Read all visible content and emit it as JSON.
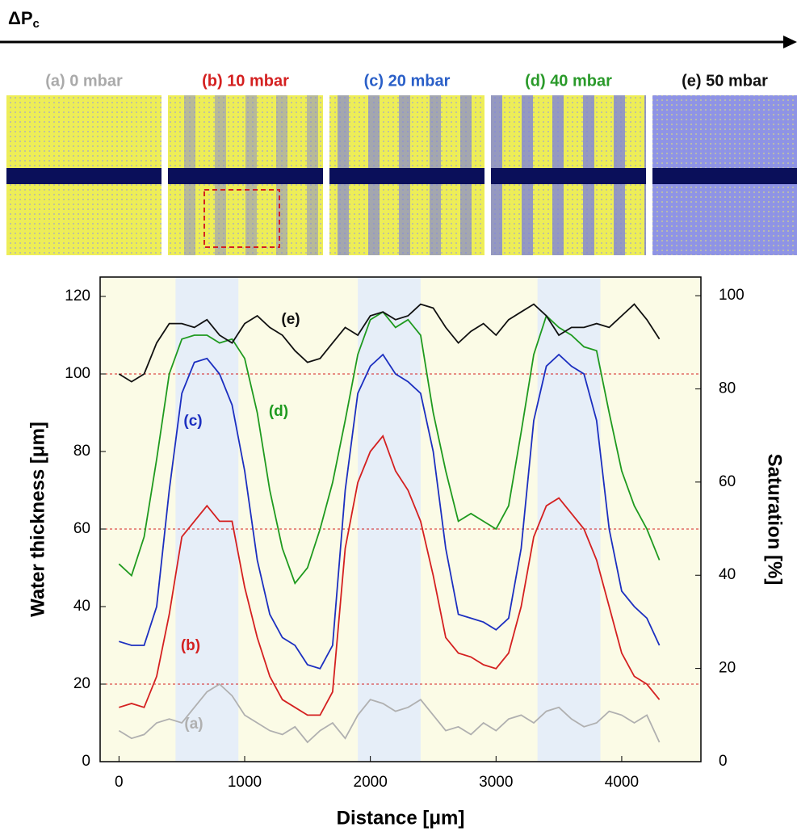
{
  "header": {
    "arrow_label": "ΔP",
    "arrow_label_sub": "c"
  },
  "panels": [
    {
      "label": "(a) 0 mbar",
      "color": "#aaaaaa"
    },
    {
      "label": "(b) 10 mbar",
      "color": "#d42020"
    },
    {
      "label": "(c) 20 mbar",
      "color": "#2a5fc8"
    },
    {
      "label": "(d) 40 mbar",
      "color": "#2a9a2a"
    },
    {
      "label": "(e) 50 mbar",
      "color": "#111111"
    }
  ],
  "chart_data": {
    "type": "line",
    "xlabel": "Distance [μm]",
    "ylabel": "Water thickness [μm]",
    "y2label": "Saturation [%]",
    "x": [
      0,
      100,
      200,
      300,
      400,
      500,
      600,
      700,
      800,
      900,
      1000,
      1100,
      1200,
      1300,
      1400,
      1500,
      1600,
      1700,
      1800,
      1900,
      2000,
      2100,
      2200,
      2300,
      2400,
      2500,
      2600,
      2700,
      2800,
      2900,
      3000,
      3100,
      3200,
      3300,
      3400,
      3500,
      3600,
      3700,
      3800,
      3900,
      4000,
      4100,
      4200,
      4300
    ],
    "series": [
      {
        "name": "(a)",
        "color": "#b0b0b0",
        "values": [
          8,
          6,
          7,
          10,
          11,
          10,
          14,
          18,
          20,
          17,
          12,
          10,
          8,
          7,
          9,
          5,
          8,
          10,
          6,
          12,
          16,
          15,
          13,
          14,
          16,
          12,
          8,
          9,
          7,
          10,
          8,
          11,
          12,
          10,
          13,
          14,
          11,
          9,
          10,
          13,
          12,
          10,
          12,
          5
        ]
      },
      {
        "name": "(b)",
        "color": "#d42020",
        "values": [
          14,
          15,
          14,
          22,
          38,
          58,
          62,
          66,
          62,
          62,
          45,
          32,
          22,
          16,
          14,
          12,
          12,
          18,
          55,
          72,
          80,
          84,
          75,
          70,
          62,
          48,
          32,
          28,
          27,
          25,
          24,
          28,
          40,
          58,
          66,
          68,
          64,
          60,
          52,
          40,
          28,
          22,
          20,
          16
        ]
      },
      {
        "name": "(c)",
        "color": "#1c2fc0",
        "values": [
          31,
          30,
          30,
          40,
          70,
          95,
          103,
          104,
          100,
          92,
          75,
          52,
          38,
          32,
          30,
          25,
          24,
          30,
          70,
          95,
          102,
          105,
          100,
          98,
          95,
          80,
          55,
          38,
          37,
          36,
          34,
          37,
          55,
          88,
          102,
          105,
          102,
          100,
          88,
          60,
          44,
          40,
          37,
          30
        ]
      },
      {
        "name": "(d)",
        "color": "#1f9a1f",
        "values": [
          51,
          48,
          58,
          78,
          100,
          109,
          110,
          110,
          108,
          109,
          104,
          90,
          70,
          55,
          46,
          50,
          60,
          72,
          88,
          105,
          114,
          116,
          112,
          114,
          110,
          90,
          75,
          62,
          64,
          62,
          60,
          66,
          85,
          105,
          115,
          112,
          110,
          107,
          106,
          90,
          75,
          66,
          60,
          52
        ]
      },
      {
        "name": "(e)",
        "color": "#111111",
        "values": [
          100,
          98,
          100,
          108,
          113,
          113,
          112,
          114,
          110,
          108,
          113,
          115,
          112,
          110,
          106,
          103,
          104,
          108,
          112,
          110,
          115,
          116,
          114,
          115,
          118,
          117,
          112,
          108,
          111,
          113,
          110,
          114,
          116,
          118,
          115,
          110,
          112,
          112,
          113,
          112,
          115,
          118,
          114,
          109
        ]
      }
    ],
    "shaded_regions": [
      [
        450,
        950
      ],
      [
        1900,
        2400
      ],
      [
        3330,
        3830
      ]
    ],
    "reference_lines": [
      20,
      60,
      100
    ],
    "xlim": [
      -150,
      4630
    ],
    "xticks": [
      0,
      1000,
      2000,
      3000,
      4000
    ],
    "ylim": [
      0,
      125
    ],
    "yticks": [
      0,
      20,
      40,
      60,
      80,
      100,
      120
    ],
    "y2lim": [
      0,
      104
    ],
    "y2ticks": [
      0,
      20,
      40,
      60,
      80,
      100
    ]
  }
}
